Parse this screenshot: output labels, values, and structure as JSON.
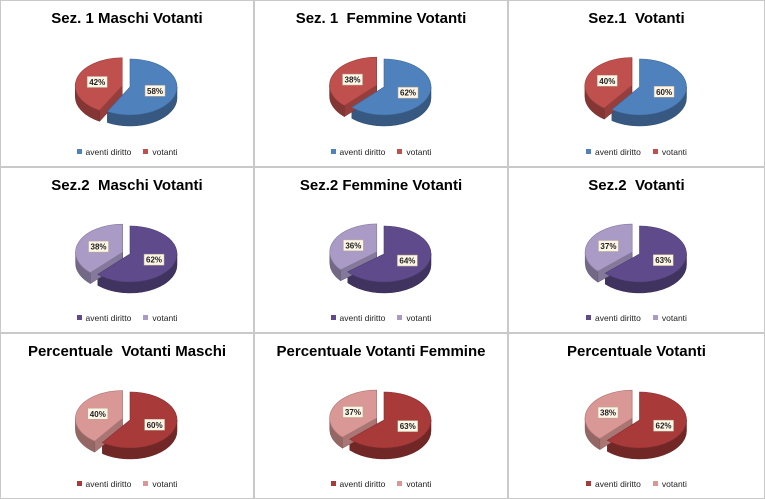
{
  "chart_data": [
    {
      "type": "pie",
      "title": "Sez. 1 Maschi Votanti",
      "categories": [
        "aventi diritto",
        "votanti"
      ],
      "values": [
        58,
        42
      ],
      "labels": [
        "58%",
        "42%"
      ],
      "colors": [
        "#4f81bd",
        "#c0504d"
      ],
      "legend": "bottom"
    },
    {
      "type": "pie",
      "title": "Sez. 1  Femmine Votanti",
      "categories": [
        "aventi diritto",
        "votanti"
      ],
      "values": [
        62,
        38
      ],
      "labels": [
        "62%",
        "38%"
      ],
      "colors": [
        "#4f81bd",
        "#c0504d"
      ],
      "legend": "bottom"
    },
    {
      "type": "pie",
      "title": "Sez.1  Votanti",
      "categories": [
        "aventi diritto",
        "votanti"
      ],
      "values": [
        60,
        40
      ],
      "labels": [
        "60%",
        "40%"
      ],
      "colors": [
        "#4f81bd",
        "#c0504d"
      ],
      "legend": "bottom"
    },
    {
      "type": "pie",
      "title": "Sez.2  Maschi Votanti",
      "categories": [
        "aventi diritto",
        "votanti"
      ],
      "values": [
        62,
        38
      ],
      "labels": [
        "62%",
        "38%"
      ],
      "colors": [
        "#5f4b8b",
        "#a99bc6"
      ],
      "legend": "bottom"
    },
    {
      "type": "pie",
      "title": "Sez.2 Femmine Votanti",
      "categories": [
        "aventi diritto",
        "votanti"
      ],
      "values": [
        64,
        36
      ],
      "labels": [
        "64%",
        "36%"
      ],
      "colors": [
        "#5f4b8b",
        "#a99bc6"
      ],
      "legend": "bottom"
    },
    {
      "type": "pie",
      "title": "Sez.2  Votanti",
      "categories": [
        "aventi diritto",
        "votanti"
      ],
      "values": [
        63,
        37
      ],
      "labels": [
        "63%",
        "37%"
      ],
      "colors": [
        "#5f4b8b",
        "#a99bc6"
      ],
      "legend": "bottom"
    },
    {
      "type": "pie",
      "title": "Percentuale  Votanti Maschi",
      "categories": [
        "aventi diritto",
        "votanti"
      ],
      "values": [
        60,
        40
      ],
      "labels": [
        "60%",
        "40%"
      ],
      "colors": [
        "#a83a3a",
        "#d99795"
      ],
      "legend": "bottom"
    },
    {
      "type": "pie",
      "title": "Percentuale Votanti Femmine",
      "categories": [
        "aventi diritto",
        "votanti"
      ],
      "values": [
        63,
        37
      ],
      "labels": [
        "63%",
        "37%"
      ],
      "colors": [
        "#a83a3a",
        "#d99795"
      ],
      "legend": "bottom"
    },
    {
      "type": "pie",
      "title": "Percentuale Votanti",
      "categories": [
        "aventi diritto",
        "votanti"
      ],
      "values": [
        62,
        38
      ],
      "labels": [
        "62%",
        "38%"
      ],
      "colors": [
        "#a83a3a",
        "#d99795"
      ],
      "legend": "bottom"
    }
  ]
}
